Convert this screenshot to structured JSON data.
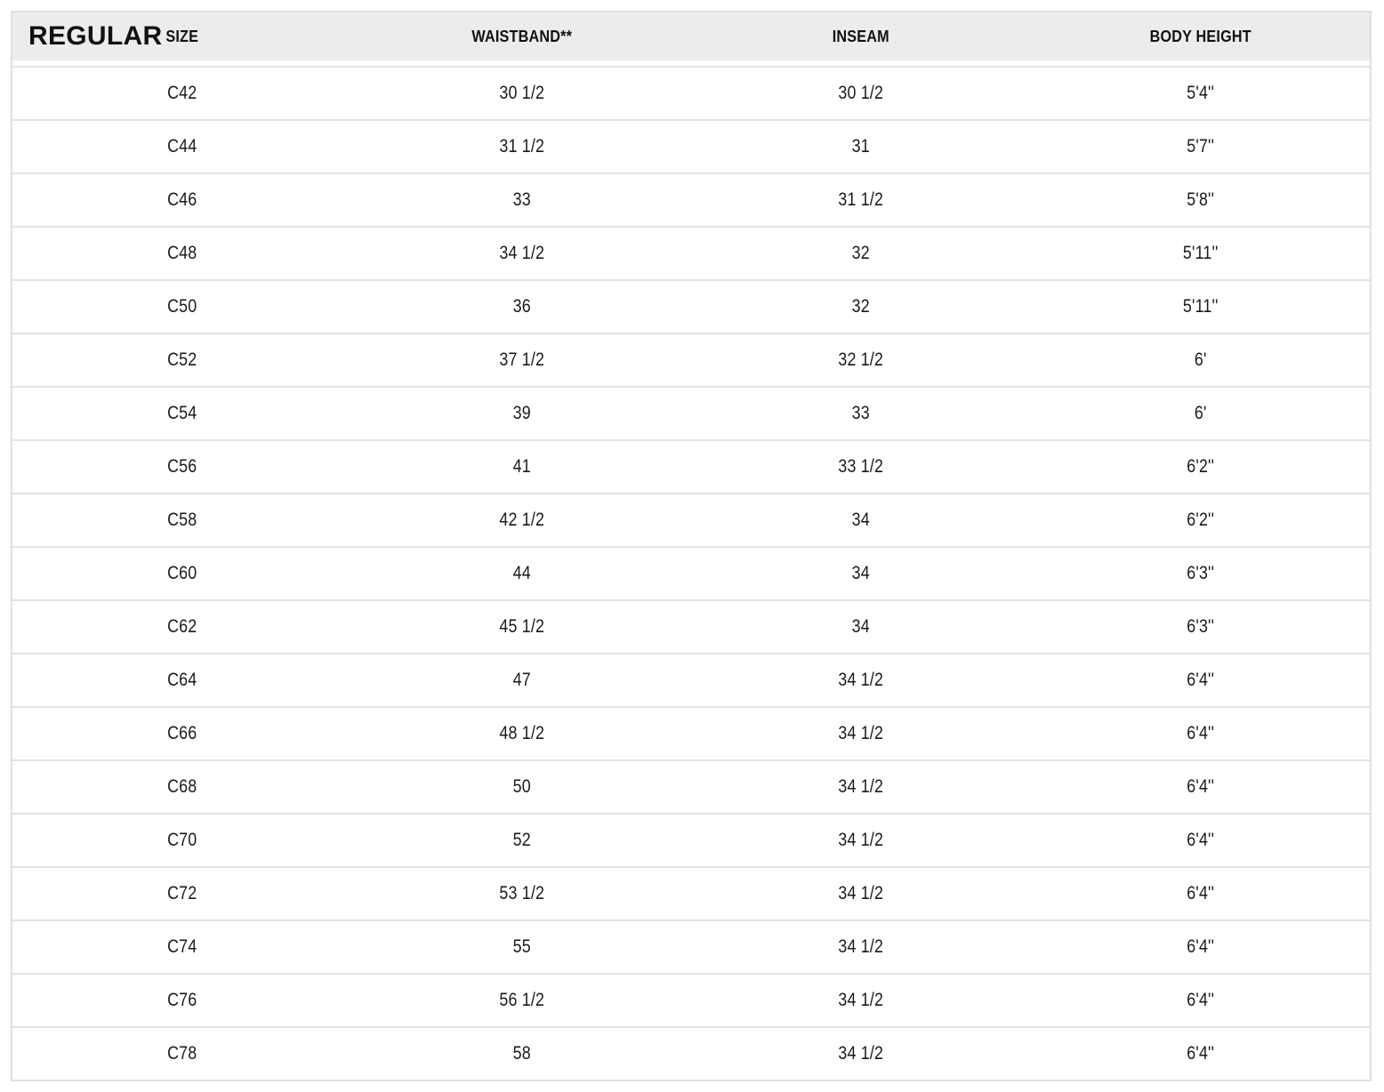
{
  "size_chart": {
    "fit_label": "REGULAR",
    "columns": [
      "SIZE",
      "WAISTBAND**",
      "INSEAM",
      "BODY HEIGHT"
    ],
    "rows": [
      {
        "size": "C42",
        "waistband": "30 1/2",
        "inseam": "30 1/2",
        "body_height": "5'4''"
      },
      {
        "size": "C44",
        "waistband": "31 1/2",
        "inseam": "31",
        "body_height": "5'7''"
      },
      {
        "size": "C46",
        "waistband": "33",
        "inseam": "31 1/2",
        "body_height": "5'8''"
      },
      {
        "size": "C48",
        "waistband": "34 1/2",
        "inseam": "32",
        "body_height": "5'11''"
      },
      {
        "size": "C50",
        "waistband": "36",
        "inseam": "32",
        "body_height": "5'11''"
      },
      {
        "size": "C52",
        "waistband": "37 1/2",
        "inseam": "32 1/2",
        "body_height": "6'"
      },
      {
        "size": "C54",
        "waistband": "39",
        "inseam": "33",
        "body_height": "6'"
      },
      {
        "size": "C56",
        "waistband": "41",
        "inseam": "33 1/2",
        "body_height": "6'2''"
      },
      {
        "size": "C58",
        "waistband": "42 1/2",
        "inseam": "34",
        "body_height": "6'2''"
      },
      {
        "size": "C60",
        "waistband": "44",
        "inseam": "34",
        "body_height": "6'3''"
      },
      {
        "size": "C62",
        "waistband": "45 1/2",
        "inseam": "34",
        "body_height": "6'3''"
      },
      {
        "size": "C64",
        "waistband": "47",
        "inseam": "34 1/2",
        "body_height": "6'4''"
      },
      {
        "size": "C66",
        "waistband": "48 1/2",
        "inseam": "34 1/2",
        "body_height": "6'4''"
      },
      {
        "size": "C68",
        "waistband": "50",
        "inseam": "34 1/2",
        "body_height": "6'4''"
      },
      {
        "size": "C70",
        "waistband": "52",
        "inseam": "34 1/2",
        "body_height": "6'4''"
      },
      {
        "size": "C72",
        "waistband": "53 1/2",
        "inseam": "34 1/2",
        "body_height": "6'4''"
      },
      {
        "size": "C74",
        "waistband": "55",
        "inseam": "34 1/2",
        "body_height": "6'4''"
      },
      {
        "size": "C76",
        "waistband": "56 1/2",
        "inseam": "34 1/2",
        "body_height": "6'4''"
      },
      {
        "size": "C78",
        "waistband": "58",
        "inseam": "34 1/2",
        "body_height": "6'4''"
      }
    ],
    "colors": {
      "header_background": "#ececec",
      "row_border": "#e2e2e2",
      "table_border": "#e0e0e0",
      "text": "#1a1a1a",
      "header_text": "#111111"
    }
  }
}
